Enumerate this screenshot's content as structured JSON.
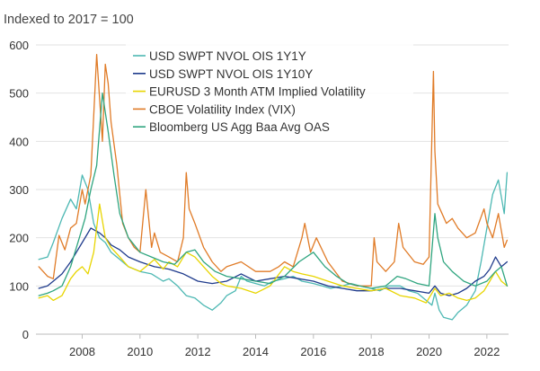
{
  "chart_data": {
    "type": "line",
    "title": "Indexed to 2017 = 100",
    "xlabel": "",
    "ylabel": "",
    "xlim": [
      2006.4,
      2022.75
    ],
    "ylim": [
      0,
      600
    ],
    "yticks": [
      0,
      100,
      200,
      300,
      400,
      500,
      600
    ],
    "xticks": [
      2008,
      2010,
      2012,
      2014,
      2016,
      2018,
      2020,
      2022
    ],
    "ytick_labels": [
      "0",
      "100",
      "200",
      "300",
      "400",
      "500",
      "600"
    ],
    "xtick_labels": [
      "2008",
      "2010",
      "2012",
      "2014",
      "2016",
      "2018",
      "2020",
      "2022"
    ],
    "legend_position": "top-center",
    "series": [
      {
        "name": "USD SWPT NVOL OIS 1Y1Y",
        "color": "#4db8b3",
        "x": [
          2006.5,
          2006.8,
          2007.0,
          2007.3,
          2007.6,
          2007.8,
          2008.0,
          2008.2,
          2008.4,
          2008.6,
          2008.8,
          2009.0,
          2009.3,
          2009.6,
          2010.0,
          2010.4,
          2010.8,
          2011.0,
          2011.3,
          2011.6,
          2011.9,
          2012.2,
          2012.5,
          2012.8,
          2013.0,
          2013.3,
          2013.5,
          2013.7,
          2014.0,
          2014.3,
          2014.6,
          2015.0,
          2015.3,
          2015.6,
          2016.0,
          2016.3,
          2016.6,
          2017.0,
          2017.3,
          2017.6,
          2018.0,
          2018.3,
          2018.6,
          2019.0,
          2019.3,
          2019.6,
          2019.9,
          2020.1,
          2020.2,
          2020.35,
          2020.5,
          2020.8,
          2021.0,
          2021.3,
          2021.6,
          2021.8,
          2022.0,
          2022.2,
          2022.4,
          2022.6,
          2022.7
        ],
        "values": [
          155,
          160,
          190,
          240,
          280,
          260,
          330,
          300,
          230,
          200,
          190,
          170,
          155,
          140,
          130,
          125,
          110,
          115,
          100,
          80,
          75,
          60,
          50,
          65,
          80,
          90,
          120,
          110,
          105,
          100,
          110,
          115,
          120,
          110,
          105,
          100,
          95,
          100,
          105,
          100,
          95,
          90,
          100,
          100,
          90,
          85,
          70,
          60,
          85,
          50,
          35,
          30,
          45,
          60,
          90,
          150,
          220,
          290,
          320,
          250,
          335
        ]
      },
      {
        "name": "USD SWPT NVOL OIS 1Y10Y",
        "color": "#1f3b8c",
        "x": [
          2006.5,
          2006.8,
          2007.0,
          2007.3,
          2007.6,
          2007.8,
          2008.0,
          2008.3,
          2008.6,
          2008.8,
          2009.0,
          2009.3,
          2009.6,
          2010.0,
          2010.5,
          2011.0,
          2011.5,
          2012.0,
          2012.5,
          2013.0,
          2013.5,
          2014.0,
          2014.5,
          2015.0,
          2015.5,
          2016.0,
          2016.5,
          2017.0,
          2017.5,
          2018.0,
          2018.5,
          2019.0,
          2019.5,
          2020.0,
          2020.2,
          2020.4,
          2020.7,
          2021.0,
          2021.3,
          2021.6,
          2021.9,
          2022.1,
          2022.3,
          2022.5,
          2022.7
        ],
        "values": [
          95,
          100,
          110,
          125,
          150,
          170,
          190,
          220,
          210,
          200,
          185,
          175,
          160,
          150,
          140,
          135,
          125,
          110,
          105,
          110,
          125,
          110,
          115,
          120,
          115,
          110,
          100,
          95,
          90,
          90,
          95,
          95,
          90,
          85,
          100,
          85,
          80,
          85,
          95,
          110,
          120,
          135,
          160,
          140,
          150
        ]
      },
      {
        "name": "EURUSD 3 Month ATM Implied Volatility",
        "color": "#e8d500",
        "x": [
          2006.5,
          2006.8,
          2007.0,
          2007.3,
          2007.6,
          2007.8,
          2008.0,
          2008.2,
          2008.4,
          2008.6,
          2008.8,
          2009.0,
          2009.3,
          2009.6,
          2010.0,
          2010.3,
          2010.5,
          2010.8,
          2011.0,
          2011.3,
          2011.6,
          2011.9,
          2012.2,
          2012.5,
          2012.8,
          2013.0,
          2013.5,
          2014.0,
          2014.5,
          2015.0,
          2015.3,
          2015.6,
          2016.0,
          2016.5,
          2017.0,
          2017.5,
          2018.0,
          2018.5,
          2019.0,
          2019.5,
          2019.9,
          2020.2,
          2020.4,
          2020.7,
          2021.0,
          2021.3,
          2021.6,
          2021.9,
          2022.1,
          2022.3,
          2022.5,
          2022.7
        ],
        "values": [
          75,
          80,
          70,
          80,
          115,
          130,
          140,
          125,
          170,
          270,
          200,
          180,
          160,
          140,
          130,
          145,
          155,
          135,
          150,
          140,
          170,
          160,
          140,
          120,
          105,
          100,
          95,
          85,
          100,
          140,
          130,
          125,
          120,
          110,
          100,
          95,
          90,
          95,
          80,
          75,
          65,
          95,
          80,
          85,
          75,
          70,
          75,
          90,
          110,
          130,
          110,
          100
        ]
      },
      {
        "name": "CBOE Volatility Index (VIX)",
        "color": "#e07b27",
        "x": [
          2006.5,
          2006.8,
          2007.0,
          2007.2,
          2007.4,
          2007.6,
          2007.8,
          2008.0,
          2008.1,
          2008.3,
          2008.5,
          2008.7,
          2008.8,
          2008.9,
          2009.0,
          2009.2,
          2009.4,
          2009.6,
          2009.8,
          2010.0,
          2010.2,
          2010.4,
          2010.5,
          2010.7,
          2011.0,
          2011.3,
          2011.5,
          2011.6,
          2011.7,
          2011.9,
          2012.2,
          2012.5,
          2012.8,
          2013.0,
          2013.5,
          2014.0,
          2014.5,
          2014.8,
          2015.0,
          2015.3,
          2015.6,
          2015.7,
          2015.9,
          2016.1,
          2016.5,
          2017.0,
          2017.5,
          2018.0,
          2018.1,
          2018.2,
          2018.5,
          2018.8,
          2018.95,
          2019.1,
          2019.5,
          2019.8,
          2020.0,
          2020.15,
          2020.2,
          2020.3,
          2020.45,
          2020.6,
          2020.8,
          2021.0,
          2021.3,
          2021.6,
          2021.9,
          2022.0,
          2022.2,
          2022.4,
          2022.6,
          2022.7
        ],
        "values": [
          140,
          120,
          115,
          205,
          175,
          220,
          230,
          300,
          270,
          330,
          580,
          400,
          560,
          520,
          440,
          350,
          230,
          200,
          180,
          170,
          300,
          180,
          210,
          170,
          160,
          150,
          200,
          335,
          260,
          230,
          180,
          150,
          130,
          140,
          150,
          130,
          130,
          140,
          150,
          140,
          200,
          230,
          170,
          200,
          150,
          110,
          100,
          100,
          200,
          150,
          130,
          150,
          230,
          180,
          150,
          145,
          160,
          545,
          380,
          270,
          250,
          230,
          240,
          220,
          200,
          210,
          260,
          230,
          200,
          250,
          180,
          195
        ]
      },
      {
        "name": "Bloomberg US Agg Baa Avg OAS",
        "color": "#2fa57f",
        "x": [
          2006.5,
          2006.8,
          2007.0,
          2007.3,
          2007.6,
          2007.9,
          2008.1,
          2008.3,
          2008.5,
          2008.7,
          2008.9,
          2009.1,
          2009.3,
          2009.6,
          2010.0,
          2010.4,
          2010.8,
          2011.2,
          2011.6,
          2011.9,
          2012.2,
          2012.6,
          2013.0,
          2013.5,
          2014.0,
          2014.5,
          2015.0,
          2015.5,
          2016.0,
          2016.4,
          2016.8,
          2017.2,
          2017.6,
          2018.0,
          2018.5,
          2018.9,
          2019.2,
          2019.6,
          2020.0,
          2020.2,
          2020.3,
          2020.5,
          2020.8,
          2021.2,
          2021.6,
          2022.0,
          2022.3,
          2022.5,
          2022.7
        ],
        "values": [
          80,
          85,
          90,
          100,
          140,
          200,
          240,
          300,
          350,
          500,
          420,
          330,
          250,
          200,
          170,
          160,
          150,
          145,
          170,
          175,
          150,
          130,
          120,
          115,
          110,
          105,
          120,
          150,
          170,
          140,
          120,
          105,
          100,
          95,
          100,
          120,
          115,
          105,
          100,
          250,
          200,
          150,
          130,
          110,
          100,
          110,
          130,
          140,
          100
        ]
      }
    ]
  }
}
